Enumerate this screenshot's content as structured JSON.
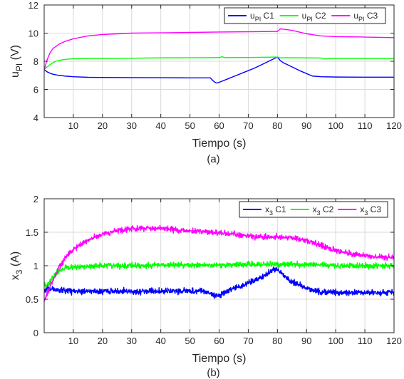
{
  "colors": {
    "c1": "#0000ff",
    "c2": "#00ff00",
    "c3": "#ff00ff",
    "axis": "#262626",
    "grid": "#d9d9d9"
  },
  "chart_data": [
    {
      "type": "line",
      "panel_label": "(a)",
      "xlabel": "Tiempo (s)",
      "ylabel": "u_PI (V)",
      "ylabel_main": "u",
      "ylabel_sub": "PI",
      "ylabel_rest": " (V)",
      "xlim": [
        0,
        120
      ],
      "ylim": [
        4,
        12
      ],
      "xticks": [
        10,
        20,
        30,
        40,
        50,
        60,
        70,
        80,
        90,
        100,
        110,
        120
      ],
      "yticks": [
        4,
        6,
        8,
        10,
        12
      ],
      "grid": true,
      "legend_position": "top-right",
      "legend_orientation": "horizontal",
      "series": [
        {
          "name": "u_PI C1",
          "name_main": "u",
          "name_sub": "PI",
          "name_rest": " C1",
          "color": "#0000ff",
          "x": [
            0,
            1,
            2,
            3,
            5,
            7,
            10,
            15,
            20,
            30,
            40,
            50,
            57,
            58,
            59,
            60,
            63,
            66,
            69,
            72,
            75,
            78,
            80,
            81,
            82,
            85,
            88,
            92,
            95,
            100,
            110,
            120
          ],
          "y": [
            7.4,
            7.25,
            7.15,
            7.08,
            7.0,
            6.95,
            6.9,
            6.86,
            6.85,
            6.84,
            6.83,
            6.82,
            6.82,
            6.6,
            6.45,
            6.5,
            6.75,
            7.0,
            7.25,
            7.5,
            7.8,
            8.1,
            8.3,
            8.05,
            7.9,
            7.6,
            7.3,
            6.95,
            6.9,
            6.88,
            6.87,
            6.87
          ]
        },
        {
          "name": "u_PI C2",
          "name_main": "u",
          "name_sub": "PI",
          "name_rest": " C2",
          "color": "#00ff00",
          "x": [
            0,
            1,
            2,
            3,
            4,
            5,
            6,
            8,
            10,
            15,
            20,
            30,
            40,
            50,
            60,
            61,
            62,
            70,
            80,
            81,
            82,
            90,
            95,
            96,
            100,
            110,
            120
          ],
          "y": [
            7.4,
            7.6,
            7.75,
            7.9,
            8.0,
            8.05,
            8.1,
            8.15,
            8.18,
            8.2,
            8.2,
            8.22,
            8.24,
            8.25,
            8.26,
            8.32,
            8.26,
            8.27,
            8.3,
            8.24,
            8.25,
            8.24,
            8.23,
            8.17,
            8.2,
            8.2,
            8.2
          ]
        },
        {
          "name": "u_PI C3",
          "name_main": "u",
          "name_sub": "PI",
          "name_rest": " C3",
          "color": "#ff00ff",
          "x": [
            0,
            1,
            2,
            3,
            5,
            7,
            10,
            15,
            20,
            25,
            30,
            40,
            50,
            60,
            70,
            80,
            81,
            82,
            85,
            90,
            95,
            100,
            110,
            120
          ],
          "y": [
            7.4,
            8.1,
            8.6,
            8.9,
            9.2,
            9.4,
            9.6,
            9.8,
            9.9,
            9.95,
            10.0,
            10.02,
            10.05,
            10.08,
            10.1,
            10.12,
            10.3,
            10.28,
            10.2,
            9.95,
            9.8,
            9.75,
            9.72,
            9.68
          ]
        }
      ]
    },
    {
      "type": "line",
      "panel_label": "(b)",
      "xlabel": "Tiempo (s)",
      "ylabel": "x_3 (A)",
      "ylabel_main": "x",
      "ylabel_sub": "3",
      "ylabel_rest": " (A)",
      "xlim": [
        0,
        120
      ],
      "ylim": [
        0,
        2
      ],
      "xticks": [
        10,
        20,
        30,
        40,
        50,
        60,
        70,
        80,
        90,
        100,
        110,
        120
      ],
      "yticks": [
        0,
        0.5,
        1,
        1.5,
        2
      ],
      "grid": true,
      "legend_position": "top-right",
      "legend_orientation": "horizontal",
      "noise": [
        0.035,
        0.035,
        0.035
      ],
      "series": [
        {
          "name": "x_3 C1",
          "name_main": "x",
          "name_sub": "3",
          "name_rest": " C1",
          "color": "#0000ff",
          "x": [
            0,
            1,
            2,
            3,
            5,
            10,
            20,
            30,
            40,
            50,
            55,
            58,
            60,
            62,
            65,
            70,
            75,
            78,
            80,
            81,
            83,
            86,
            90,
            95,
            100,
            110,
            120
          ],
          "y": [
            0.62,
            0.68,
            0.66,
            0.65,
            0.63,
            0.62,
            0.62,
            0.62,
            0.62,
            0.62,
            0.62,
            0.57,
            0.55,
            0.6,
            0.66,
            0.74,
            0.84,
            0.92,
            0.96,
            0.9,
            0.82,
            0.74,
            0.66,
            0.61,
            0.6,
            0.6,
            0.6
          ]
        },
        {
          "name": "x_3 C2",
          "name_main": "x",
          "name_sub": "3",
          "name_rest": " C2",
          "color": "#00ff00",
          "x": [
            0,
            1,
            2,
            3,
            4,
            5,
            6,
            8,
            10,
            15,
            20,
            30,
            40,
            50,
            60,
            70,
            80,
            90,
            100,
            110,
            120
          ],
          "y": [
            0.7,
            0.72,
            0.76,
            0.82,
            0.88,
            0.92,
            0.95,
            0.97,
            0.98,
            0.99,
            1.0,
            1.0,
            1.01,
            1.01,
            1.01,
            1.02,
            1.02,
            1.02,
            1.0,
            1.0,
            0.99
          ]
        },
        {
          "name": "x_3 C3",
          "name_main": "x",
          "name_sub": "3",
          "name_rest": " C3",
          "color": "#ff00ff",
          "x": [
            0,
            1,
            2,
            3,
            4,
            5,
            7,
            10,
            15,
            20,
            25,
            30,
            35,
            40,
            45,
            50,
            60,
            70,
            75,
            80,
            85,
            90,
            95,
            100,
            105,
            110,
            115,
            120
          ],
          "y": [
            0.48,
            0.58,
            0.68,
            0.78,
            0.88,
            0.98,
            1.1,
            1.25,
            1.38,
            1.47,
            1.52,
            1.55,
            1.56,
            1.56,
            1.54,
            1.52,
            1.49,
            1.45,
            1.43,
            1.43,
            1.42,
            1.38,
            1.3,
            1.23,
            1.18,
            1.15,
            1.13,
            1.12
          ]
        }
      ]
    }
  ]
}
